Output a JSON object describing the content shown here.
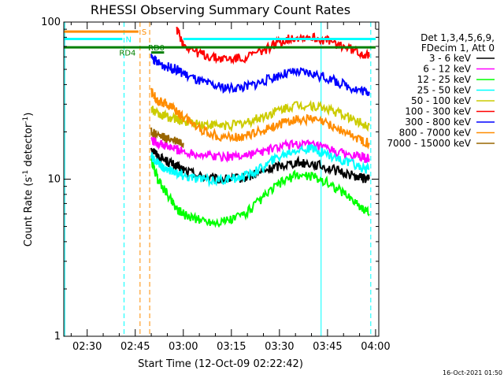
{
  "chart_data": {
    "type": "line",
    "title": "RHESSI Observing Summary Count Rates",
    "xlabel": "Start Time (12-Oct-09 02:22:42)",
    "ylabel_main": "Count Rate (s",
    "ylabel_sup": "-1",
    "ylabel_tail": " detector",
    "ylabel_close": ")",
    "y_scale": "log",
    "ylim": [
      1,
      100
    ],
    "y_ticks": [
      {
        "value": 1,
        "label": "1"
      },
      {
        "value": 10,
        "label": "10"
      },
      {
        "value": 100,
        "label": "100"
      }
    ],
    "xlim": [
      "02:22:42",
      "04:01:00"
    ],
    "x_ticks": [
      "02:30",
      "02:45",
      "03:00",
      "03:15",
      "03:30",
      "03:45",
      "04:00"
    ],
    "legend_header": [
      "Det 1,3,4,5,6,9,",
      "FDecim 1, Att 0"
    ],
    "legend_placement": "right",
    "timestamp": "16-Oct-2021 01:50",
    "series": [
      {
        "name": "3 - 6 keV",
        "color": "#000000",
        "x": [
          "02:50",
          "02:52",
          "02:55",
          "02:58",
          "03:00",
          "03:05",
          "03:10",
          "03:15",
          "03:20",
          "03:25",
          "03:30",
          "03:35",
          "03:40",
          "03:45",
          "03:50",
          "03:55",
          "03:58"
        ],
        "y": [
          16,
          14,
          13,
          12,
          11.5,
          10.5,
          10,
          10,
          10.3,
          11.2,
          12.2,
          12.8,
          12.6,
          11.8,
          11,
          10.3,
          10
        ]
      },
      {
        "name": "6 - 12 keV",
        "color": "#ff00ff",
        "x": [
          "02:50",
          "02:52",
          "02:55",
          "02:58",
          "03:00",
          "03:05",
          "03:10",
          "03:15",
          "03:20",
          "03:25",
          "03:30",
          "03:35",
          "03:40",
          "03:45",
          "03:50",
          "03:55",
          "03:58"
        ],
        "y": [
          18,
          17,
          16,
          15.5,
          15,
          14.5,
          14,
          14,
          14.3,
          15,
          16,
          16.8,
          16.5,
          15.5,
          14.5,
          13.8,
          13.5
        ]
      },
      {
        "name": "12 - 25 keV",
        "color": "#00ff00",
        "x": [
          "02:50",
          "02:52",
          "02:55",
          "02:58",
          "03:00",
          "03:05",
          "03:10",
          "03:15",
          "03:20",
          "03:25",
          "03:30",
          "03:35",
          "03:40",
          "03:45",
          "03:50",
          "03:55",
          "03:58"
        ],
        "y": [
          13,
          10,
          8,
          6.5,
          6,
          5.5,
          5.3,
          5.5,
          6.2,
          7.6,
          9.4,
          10.6,
          10.5,
          9.5,
          8.2,
          6.8,
          6
        ]
      },
      {
        "name": "25 - 50 keV",
        "color": "#00ffff",
        "x": [
          "02:50",
          "02:52",
          "02:55",
          "02:58",
          "03:00",
          "03:05",
          "03:10",
          "03:15",
          "03:20",
          "03:25",
          "03:30",
          "03:35",
          "03:40",
          "03:45",
          "03:50",
          "03:55",
          "03:58"
        ],
        "y": [
          14,
          12.5,
          11.5,
          11,
          10.5,
          10,
          9.8,
          10,
          10.6,
          12,
          14,
          15.5,
          15.5,
          14.5,
          13,
          12,
          11.5
        ]
      },
      {
        "name": "50 - 100 keV",
        "color": "#cccc00",
        "x": [
          "02:50",
          "02:52",
          "02:55",
          "02:58",
          "03:00",
          "03:05",
          "03:10",
          "03:15",
          "03:20",
          "03:25",
          "03:30",
          "03:35",
          "03:40",
          "03:45",
          "03:50",
          "03:55",
          "03:58"
        ],
        "y": [
          28,
          26,
          25,
          24,
          23.5,
          22.5,
          22,
          22,
          23,
          25,
          27.5,
          29.5,
          29.5,
          28,
          25.5,
          23,
          22
        ]
      },
      {
        "name": "100 - 300 keV",
        "color": "#ff0000",
        "x": [
          "02:58",
          "03:00",
          "03:05",
          "03:10",
          "03:15",
          "03:20",
          "03:25",
          "03:30",
          "03:35",
          "03:40",
          "03:45",
          "03:50",
          "03:55",
          "03:58"
        ],
        "y": [
          90,
          72,
          63,
          59,
          58,
          60,
          66,
          75,
          80,
          80,
          76,
          70,
          64,
          60
        ]
      },
      {
        "name": "300 - 800 keV",
        "color": "#0000ff",
        "x": [
          "02:50",
          "02:52",
          "02:55",
          "02:58",
          "03:00",
          "03:05",
          "03:10",
          "03:15",
          "03:20",
          "03:25",
          "03:30",
          "03:35",
          "03:40",
          "03:45",
          "03:50",
          "03:55",
          "03:58"
        ],
        "y": [
          60,
          55,
          52,
          50,
          47,
          42,
          39,
          38,
          39,
          42,
          46,
          48,
          47,
          44,
          40,
          37,
          36
        ]
      },
      {
        "name": "800 - 7000 keV",
        "color": "#ff8c00",
        "x": [
          "02:50",
          "02:52",
          "02:55",
          "02:58",
          "03:00",
          "03:05",
          "03:10",
          "03:15",
          "03:20",
          "03:25",
          "03:30",
          "03:35",
          "03:40",
          "03:45",
          "03:50",
          "03:55",
          "03:58"
        ],
        "y": [
          36,
          32,
          30,
          27,
          25,
          21,
          19,
          18.5,
          19,
          20.5,
          22.5,
          24,
          24,
          22.5,
          20,
          18,
          17
        ]
      },
      {
        "name": "7000 - 15000 keV",
        "color": "#996600",
        "x": [
          "02:50",
          "02:52",
          "02:55",
          "02:58",
          "03:00"
        ],
        "y": [
          20,
          19,
          18,
          17.5,
          17
        ]
      }
    ],
    "flags": [
      {
        "label": "S",
        "color": "#ff8c00",
        "y_value": 87,
        "x_start": "02:22:42",
        "x_end": "02:46:00",
        "label_x": "02:47:00"
      },
      {
        "label": "N",
        "color": "#00ffff",
        "y_value": 78,
        "x_start": "02:22:42",
        "x_end": "02:41:00",
        "label_x": "02:42:00",
        "x2_start": "03:00:00",
        "x2_end": "04:00:00"
      },
      {
        "label": "RD0",
        "color": "#008000",
        "y_value": 69,
        "x_start": "02:22:42",
        "x_end": "04:00:00",
        "label_x": "02:49:00"
      },
      {
        "label": "RD4",
        "color": "#008000",
        "y_value": 64,
        "x_start": "02:50:00",
        "x_end": "02:54:00",
        "label_x": "02:40:00"
      }
    ],
    "vertical_lines": [
      {
        "x": "02:23:00",
        "color": "#00ffff",
        "style": "solid"
      },
      {
        "x": "02:41:30",
        "color": "#00ffff",
        "style": "dashed"
      },
      {
        "x": "02:46:30",
        "color": "#ff8c00",
        "style": "dashed"
      },
      {
        "x": "02:49:30",
        "color": "#ff8c00",
        "style": "dashed"
      },
      {
        "x": "03:43:00",
        "color": "#00ffff",
        "style": "solid"
      },
      {
        "x": "03:58:30",
        "color": "#00ffff",
        "style": "dashed"
      }
    ]
  }
}
